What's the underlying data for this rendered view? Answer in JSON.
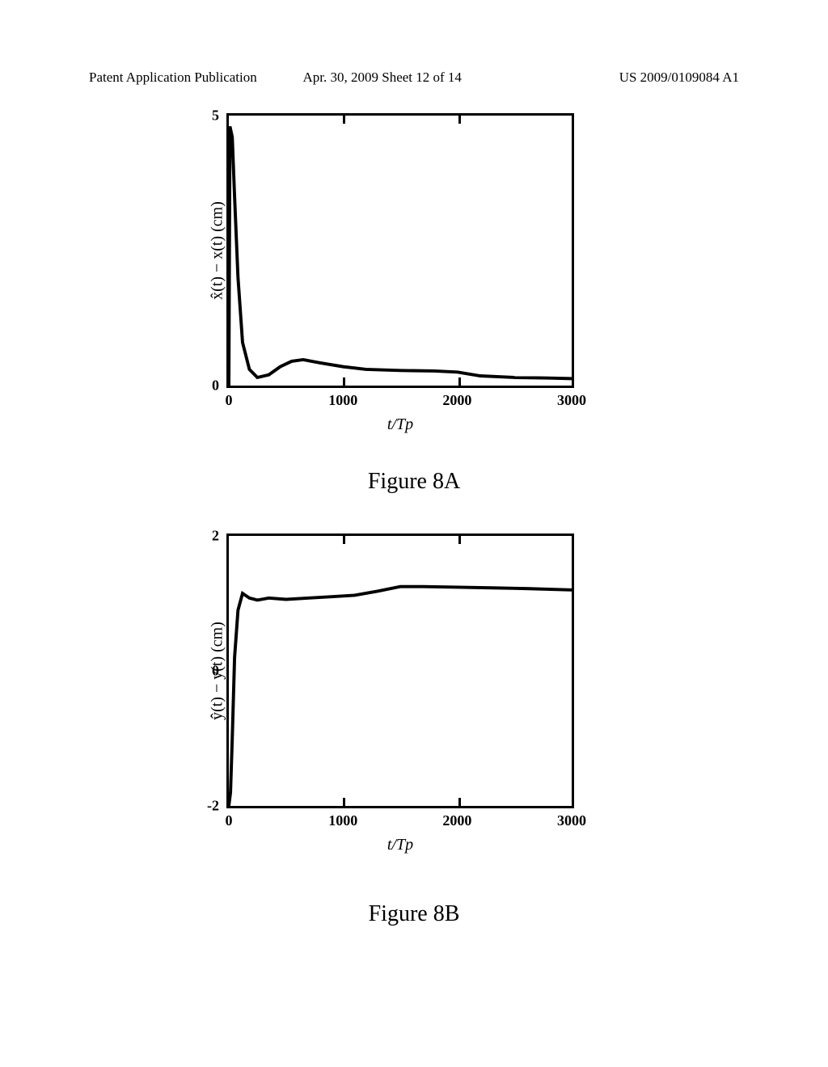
{
  "header": {
    "left": "Patent Application Publication",
    "center": "Apr. 30, 2009  Sheet 12 of 14",
    "right": "US 2009/0109084 A1"
  },
  "chartA": {
    "type": "line",
    "ylabel": "x̂(t) − x(t) (cm)",
    "xlabel": "t/Tp",
    "ylim": [
      0,
      5
    ],
    "xlim": [
      0,
      3000
    ],
    "yticks": [
      0,
      5
    ],
    "xticks": [
      0,
      1000,
      2000,
      3000
    ],
    "background_color": "#ffffff",
    "border_color": "#000000",
    "line_color": "#000000",
    "line_width": 4,
    "label_fontsize": 20,
    "tick_fontsize": 18,
    "data_points": [
      [
        0,
        0
      ],
      [
        10,
        4.8
      ],
      [
        30,
        4.6
      ],
      [
        50,
        3.5
      ],
      [
        80,
        2.0
      ],
      [
        120,
        0.8
      ],
      [
        180,
        0.3
      ],
      [
        250,
        0.15
      ],
      [
        350,
        0.2
      ],
      [
        450,
        0.35
      ],
      [
        550,
        0.45
      ],
      [
        650,
        0.48
      ],
      [
        800,
        0.42
      ],
      [
        1000,
        0.35
      ],
      [
        1200,
        0.3
      ],
      [
        1500,
        0.28
      ],
      [
        1800,
        0.27
      ],
      [
        2000,
        0.25
      ],
      [
        2200,
        0.18
      ],
      [
        2500,
        0.15
      ],
      [
        2800,
        0.14
      ],
      [
        3000,
        0.13
      ]
    ]
  },
  "chartB": {
    "type": "line",
    "ylabel": "ŷ(t) − y(t) (cm)",
    "xlabel": "t/Tp",
    "ylim": [
      -2,
      2
    ],
    "xlim": [
      0,
      3000
    ],
    "yticks": [
      -2,
      0,
      2
    ],
    "xticks": [
      0,
      1000,
      2000,
      3000
    ],
    "background_color": "#ffffff",
    "border_color": "#000000",
    "line_color": "#000000",
    "line_width": 4,
    "label_fontsize": 20,
    "tick_fontsize": 18,
    "data_points": [
      [
        0,
        -2
      ],
      [
        15,
        -1.8
      ],
      [
        30,
        -1.0
      ],
      [
        50,
        0.2
      ],
      [
        80,
        0.9
      ],
      [
        120,
        1.15
      ],
      [
        180,
        1.08
      ],
      [
        250,
        1.05
      ],
      [
        350,
        1.08
      ],
      [
        500,
        1.06
      ],
      [
        700,
        1.08
      ],
      [
        900,
        1.1
      ],
      [
        1100,
        1.12
      ],
      [
        1300,
        1.18
      ],
      [
        1500,
        1.25
      ],
      [
        1700,
        1.25
      ],
      [
        2000,
        1.24
      ],
      [
        2300,
        1.23
      ],
      [
        2600,
        1.22
      ],
      [
        3000,
        1.2
      ]
    ]
  },
  "captions": {
    "a": "Figure 8A",
    "b": "Figure 8B"
  }
}
